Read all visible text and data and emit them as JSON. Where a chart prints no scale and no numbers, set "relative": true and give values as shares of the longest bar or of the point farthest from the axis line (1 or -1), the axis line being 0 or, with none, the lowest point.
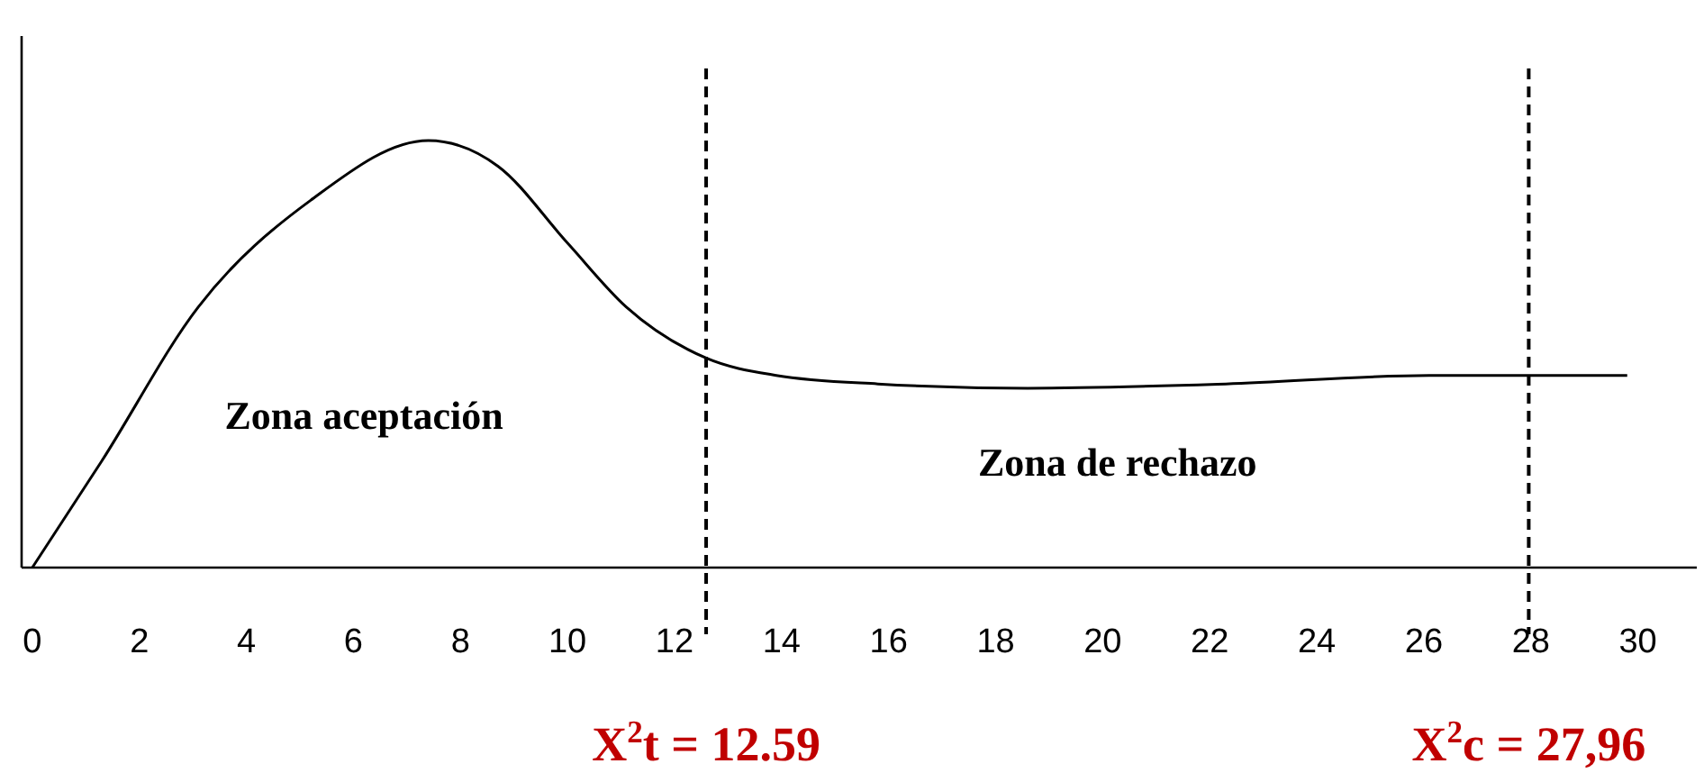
{
  "chart_data": {
    "type": "line",
    "relative": true,
    "x": [
      0,
      1.3,
      3.1,
      5.2,
      7.4,
      8.7,
      10,
      11.1,
      12.6,
      13.9,
      15.8,
      18.6,
      22.3,
      26.1,
      27.2,
      29.8
    ],
    "series": [
      {
        "color": "#000000",
        "values": [
          0,
          0.25,
          0.61,
          0.86,
          1,
          0.94,
          0.76,
          0.61,
          0.49,
          0.45,
          0.43,
          0.42,
          0.43,
          0.45,
          0.45,
          0.45
        ]
      }
    ],
    "xlim": [
      -0.2,
      31.1
    ],
    "xticks": [
      0,
      2,
      4,
      6,
      8,
      10,
      12,
      14,
      16,
      18,
      20,
      22,
      24,
      26,
      28,
      30
    ],
    "grid": false,
    "marker": "none",
    "line_style": "solid",
    "ref_lines": [
      {
        "axis": "x",
        "value": 12.59,
        "label": "X$^{2}$t = 12.59",
        "color": "#000000",
        "line_style": "dashed"
      },
      {
        "axis": "x",
        "value": 27.96,
        "label": "X$^{2}$c = 27,96",
        "color": "#000000",
        "line_style": "dashed"
      }
    ],
    "annotations": [
      "Zona aceptación",
      "Zona de rechazo"
    ]
  }
}
